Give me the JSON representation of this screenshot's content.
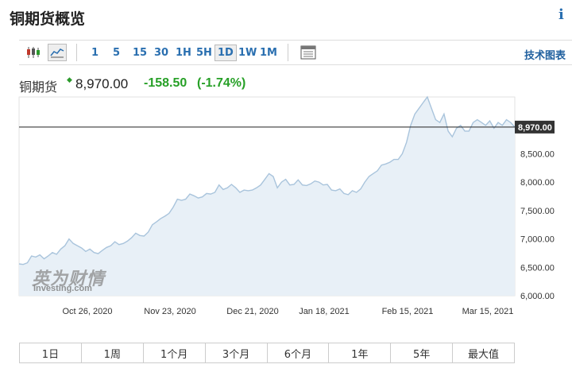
{
  "page": {
    "title": "铜期货概览",
    "info_icon": "i"
  },
  "toolbar": {
    "icons": [
      {
        "name": "candlestick-icon",
        "active": false
      },
      {
        "name": "line-chart-icon",
        "active": true
      }
    ],
    "timeframes": [
      "1",
      "5",
      "15",
      "30",
      "1H",
      "5H",
      "1D",
      "1W",
      "1M"
    ],
    "active_timeframe": "1D",
    "table_icon": "table-icon",
    "tech_link": "技术图表"
  },
  "quote": {
    "name": "铜期货",
    "price": "8,970.00",
    "change": "-158.50",
    "change_pct": "(-1.74%)",
    "change_color": "#27a027"
  },
  "watermark": {
    "cn": "英为财情",
    "en": "Investing.com"
  },
  "range_buttons": [
    "1日",
    "1周",
    "1个月",
    "3个月",
    "6个月",
    "1年",
    "5年",
    "最大值"
  ],
  "chart_data": {
    "type": "area",
    "x_labels": [
      "Oct 26, 2020",
      "Nov 23, 2020",
      "Dec 21, 2020",
      "Jan 18, 2021",
      "Feb 15, 2021",
      "Mar 15, 2021"
    ],
    "y_ticks": [
      "6,000.00",
      "6,500.00",
      "7,000.00",
      "7,500.00",
      "8,000.00",
      "8,500.00"
    ],
    "ylim": [
      6000,
      9500
    ],
    "current_value": 8970,
    "current_label": "8,970.00",
    "colors": {
      "line": "#a9c4dc",
      "fill": "#e8f0f7",
      "current_line": "#222222",
      "badge": "#333333"
    },
    "series": [
      6560,
      6550,
      6580,
      6700,
      6680,
      6720,
      6650,
      6700,
      6760,
      6730,
      6820,
      6880,
      7000,
      6920,
      6880,
      6840,
      6780,
      6820,
      6760,
      6740,
      6800,
      6850,
      6880,
      6950,
      6900,
      6920,
      6960,
      7020,
      7100,
      7060,
      7050,
      7120,
      7250,
      7300,
      7360,
      7400,
      7450,
      7560,
      7700,
      7680,
      7700,
      7790,
      7760,
      7720,
      7740,
      7800,
      7790,
      7820,
      7950,
      7870,
      7900,
      7960,
      7900,
      7820,
      7860,
      7850,
      7860,
      7900,
      7950,
      8050,
      8150,
      8100,
      7900,
      8000,
      8050,
      7950,
      7960,
      8040,
      7950,
      7940,
      7970,
      8020,
      8000,
      7950,
      7960,
      7860,
      7850,
      7880,
      7800,
      7780,
      7850,
      7820,
      7880,
      8000,
      8100,
      8150,
      8200,
      8300,
      8320,
      8350,
      8400,
      8400,
      8500,
      8700,
      9000,
      9200,
      9300,
      9400,
      9500,
      9300,
      9100,
      9050,
      9200,
      8900,
      8800,
      8950,
      9000,
      8900,
      8900,
      9050,
      9100,
      9050,
      9000,
      9080,
      8950,
      9050,
      9000,
      9100,
      9050,
      8970
    ]
  }
}
